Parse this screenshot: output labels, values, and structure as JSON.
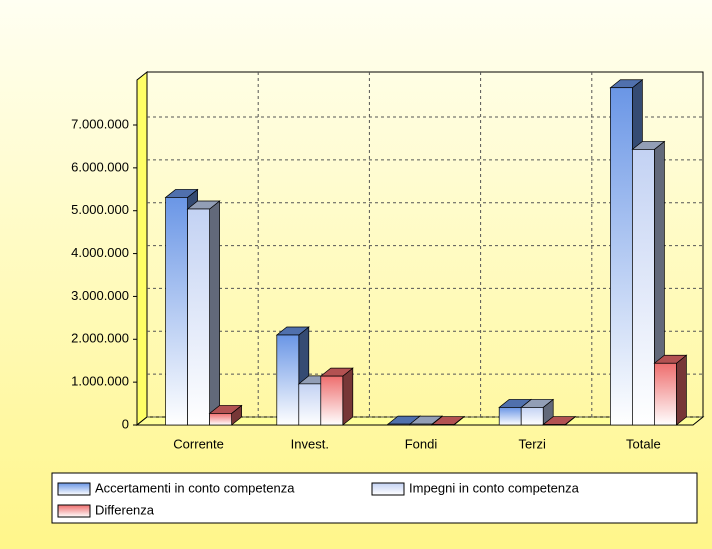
{
  "chart_data": {
    "type": "bar3d",
    "categories": [
      "Corrente",
      "Invest.",
      "Fondi",
      "Terzi",
      "Totale"
    ],
    "series": [
      {
        "name": "Accertamenti in conto competenza",
        "color": "#6a96e6",
        "values": [
          5310000,
          2100000,
          20000,
          410000,
          7870000
        ]
      },
      {
        "name": "Impegni in conto competenza",
        "color": "#c3d2f3",
        "values": [
          5040000,
          960000,
          20000,
          410000,
          6430000
        ]
      },
      {
        "name": "Differenza",
        "color": "#ee6e6e",
        "values": [
          270000,
          1140000,
          10000,
          10000,
          1440000
        ]
      }
    ],
    "ylim": [
      0,
      8050000
    ],
    "yticks": [
      {
        "value": 0,
        "label": "0"
      },
      {
        "value": 1000000,
        "label": "1.000.000"
      },
      {
        "value": 2000000,
        "label": "2.000.000"
      },
      {
        "value": 3000000,
        "label": "3.000.000"
      },
      {
        "value": 4000000,
        "label": "4.000.000"
      },
      {
        "value": 5000000,
        "label": "5.000.000"
      },
      {
        "value": 6000000,
        "label": "6.000.000"
      },
      {
        "value": 7000000,
        "label": "7.000.000"
      }
    ],
    "grid": true,
    "legend": "bottom"
  }
}
